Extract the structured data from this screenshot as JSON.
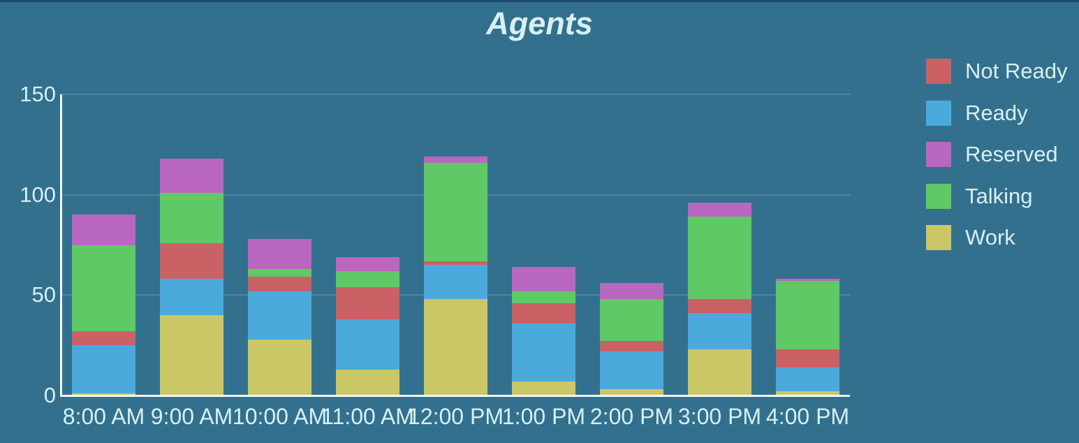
{
  "title": "Agents",
  "colors": {
    "background": "#33708E",
    "top_border": "#1A4A6E",
    "text": "#D7F0F3",
    "axis_line": "#F0FAFB",
    "gridline": "rgba(255,255,255,0.14)"
  },
  "y_axis": {
    "ticks": [
      0,
      50,
      100,
      150
    ],
    "min": 0,
    "max": 150
  },
  "legend": {
    "position": "right",
    "items": [
      {
        "label": "Not Ready",
        "color": "#CA6164"
      },
      {
        "label": "Ready",
        "color": "#4AAADC"
      },
      {
        "label": "Reserved",
        "color": "#B967C1"
      },
      {
        "label": "Talking",
        "color": "#5FC965"
      },
      {
        "label": "Work",
        "color": "#CBC766"
      }
    ]
  },
  "chart_data": {
    "type": "bar",
    "stacked": true,
    "title": "Agents",
    "xlabel": "",
    "ylabel": "",
    "ylim": [
      0,
      150
    ],
    "grid": "horizontal",
    "legend_position": "right",
    "categories": [
      "8:00 AM",
      "9:00 AM",
      "10:00 AM",
      "11:00 AM",
      "12:00 PM",
      "1:00 PM",
      "2:00 PM",
      "3:00 PM",
      "4:00 PM"
    ],
    "stack_order_bottom_to_top": [
      "Work",
      "Ready",
      "Not Ready",
      "Talking",
      "Reserved"
    ],
    "series": [
      {
        "name": "Work",
        "color": "#CBC766",
        "values": [
          1,
          40,
          28,
          13,
          48,
          7,
          3,
          23,
          2
        ]
      },
      {
        "name": "Ready",
        "color": "#4AAADC",
        "values": [
          24,
          18,
          24,
          25,
          17,
          29,
          19,
          18,
          12
        ]
      },
      {
        "name": "Not Ready",
        "color": "#CA6164",
        "values": [
          7,
          18,
          7,
          16,
          2,
          10,
          5,
          7,
          9
        ]
      },
      {
        "name": "Talking",
        "color": "#5FC965",
        "values": [
          43,
          25,
          4,
          8,
          49,
          6,
          21,
          41,
          34
        ]
      },
      {
        "name": "Reserved",
        "color": "#B967C1",
        "values": [
          15,
          17,
          15,
          7,
          3,
          12,
          8,
          7,
          1
        ]
      }
    ],
    "totals": [
      90,
      118,
      78,
      69,
      119,
      64,
      56,
      96,
      58
    ]
  }
}
